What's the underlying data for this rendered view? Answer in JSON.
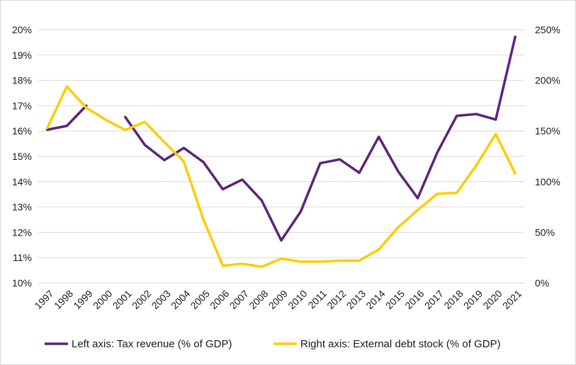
{
  "chart_data": {
    "type": "line",
    "title": "",
    "categories": [
      "1997",
      "1998",
      "1999",
      "2000",
      "2001",
      "2002",
      "2003",
      "2004",
      "2005",
      "2006",
      "2007",
      "2008",
      "2009",
      "2010",
      "2011",
      "2012",
      "2013",
      "2014",
      "2015",
      "2016",
      "2017",
      "2018",
      "2019",
      "2020",
      "2021"
    ],
    "series": [
      {
        "name": "Left axis: Tax revenue (% of GDP)",
        "axis": "left",
        "color": "#5b2479",
        "values": [
          16.05,
          16.2,
          17.0,
          null,
          16.55,
          15.45,
          14.85,
          15.33,
          14.78,
          13.7,
          14.08,
          13.25,
          11.68,
          12.82,
          14.73,
          14.88,
          14.35,
          15.77,
          14.4,
          13.35,
          15.15,
          16.6,
          16.67,
          16.45,
          19.72
        ]
      },
      {
        "name": "Right axis: External debt stock (% of GDP)",
        "axis": "right",
        "color": "#ffcc00",
        "values": [
          153,
          194,
          173,
          161,
          151,
          159,
          139,
          120,
          63,
          17,
          19,
          16,
          24,
          21,
          21,
          22,
          22,
          33,
          55,
          72,
          88,
          89,
          116,
          147,
          108
        ]
      }
    ],
    "y_left": {
      "range": [
        10,
        20
      ],
      "ticks": [
        10,
        11,
        12,
        13,
        14,
        15,
        16,
        17,
        18,
        19,
        20
      ],
      "tick_labels": [
        "10%",
        "11%",
        "12%",
        "13%",
        "14%",
        "15%",
        "16%",
        "17%",
        "18%",
        "19%",
        "20%"
      ]
    },
    "y_right": {
      "range": [
        0,
        250
      ],
      "ticks": [
        0,
        50,
        100,
        150,
        200,
        250
      ],
      "tick_labels": [
        "0%",
        "50%",
        "100%",
        "150%",
        "200%",
        "250%"
      ]
    },
    "grid": true,
    "legend_position": "bottom"
  }
}
